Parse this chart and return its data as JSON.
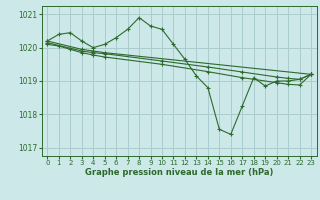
{
  "background_color": "#cce8e8",
  "grid_color": "#aacccc",
  "line_color": "#2d6a2d",
  "marker_color": "#2d6a2d",
  "title": "Graphe pression niveau de la mer (hPa)",
  "xlim": [
    -0.5,
    23.5
  ],
  "ylim": [
    1016.75,
    1021.25
  ],
  "yticks": [
    1017,
    1018,
    1019,
    1020,
    1021
  ],
  "xticks": [
    0,
    1,
    2,
    3,
    4,
    5,
    6,
    7,
    8,
    9,
    10,
    11,
    12,
    13,
    14,
    15,
    16,
    17,
    18,
    19,
    20,
    21,
    22,
    23
  ],
  "series": [
    {
      "x": [
        0,
        1,
        2,
        3,
        4,
        5,
        6,
        7,
        8,
        9,
        10,
        11,
        12,
        13,
        14,
        15,
        16,
        17,
        18,
        19,
        20,
        21,
        22,
        23
      ],
      "y": [
        1020.2,
        1020.4,
        1020.45,
        1020.2,
        1020.0,
        1020.1,
        1020.3,
        1020.55,
        1020.9,
        1020.65,
        1020.55,
        1020.1,
        1019.65,
        1019.15,
        1018.8,
        1017.55,
        1017.4,
        1018.25,
        1019.1,
        1018.85,
        1019.0,
        1019.0,
        1019.05,
        1019.2
      ]
    },
    {
      "x": [
        0,
        3,
        4,
        5,
        23
      ],
      "y": [
        1020.2,
        1019.95,
        1019.9,
        1019.85,
        1019.2
      ]
    },
    {
      "x": [
        0,
        3,
        4,
        5,
        10,
        14,
        17,
        20,
        21,
        22,
        23
      ],
      "y": [
        1020.15,
        1019.9,
        1019.85,
        1019.82,
        1019.6,
        1019.42,
        1019.27,
        1019.12,
        1019.08,
        1019.05,
        1019.2
      ]
    },
    {
      "x": [
        0,
        1,
        2,
        3,
        4,
        5,
        10,
        14,
        17,
        20,
        21,
        22,
        23
      ],
      "y": [
        1020.1,
        1020.05,
        1019.95,
        1019.85,
        1019.78,
        1019.72,
        1019.5,
        1019.28,
        1019.1,
        1018.95,
        1018.9,
        1018.88,
        1019.2
      ]
    }
  ]
}
